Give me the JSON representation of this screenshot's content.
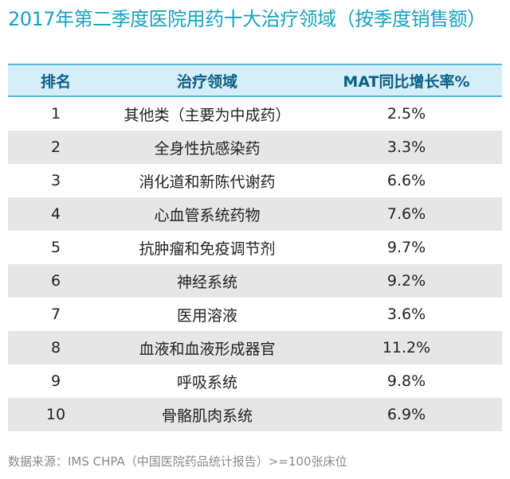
{
  "title": "2017年第二季度医院用药十大治疗领域（按季度销售额）",
  "table": {
    "headers": [
      "排名",
      "治疗领域",
      "MAT同比增长率%"
    ],
    "rows": [
      {
        "rank": "1",
        "area": "其他类（主要为中成药）",
        "growth": "2.5%"
      },
      {
        "rank": "2",
        "area": "全身性抗感染药",
        "growth": "3.3%"
      },
      {
        "rank": "3",
        "area": "消化道和新陈代谢药",
        "growth": "6.6%"
      },
      {
        "rank": "4",
        "area": "心血管系统药物",
        "growth": "7.6%"
      },
      {
        "rank": "5",
        "area": "抗肿瘤和免疫调节剂",
        "growth": "9.7%"
      },
      {
        "rank": "6",
        "area": "神经系统",
        "growth": "9.2%"
      },
      {
        "rank": "7",
        "area": "医用溶液",
        "growth": "3.6%"
      },
      {
        "rank": "8",
        "area": "血液和血液形成器官",
        "growth": "11.2%"
      },
      {
        "rank": "9",
        "area": "呼吸系统",
        "growth": "9.8%"
      },
      {
        "rank": "10",
        "area": "骨骼肌肉系统",
        "growth": "6.9%"
      }
    ]
  },
  "source": "数据来源：IMS CHPA（中国医院药品统计报告）>=100张床位",
  "colors": {
    "title": "#1aa2c0",
    "header_bg": "#d6eef7",
    "header_border": "#55b9d7",
    "header_text": "#0c5f86",
    "stripe": "#e6e6e6"
  }
}
